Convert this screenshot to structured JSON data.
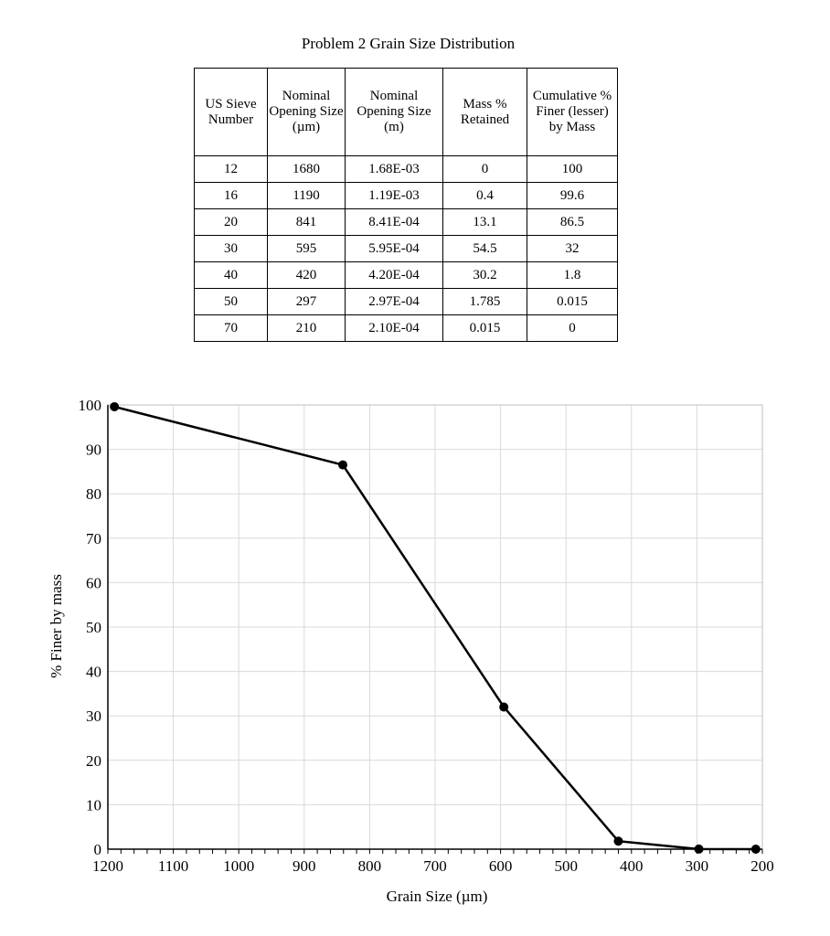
{
  "table": {
    "title": "Problem 2 Grain Size Distribution",
    "headers": [
      "US Sieve Number",
      "Nominal Opening Size (µm)",
      "Nominal Opening Size (m)",
      "Mass % Retained",
      "Cumulative % Finer (lesser) by Mass"
    ],
    "rows": [
      [
        "12",
        "1680",
        "1.68E-03",
        "0",
        "100"
      ],
      [
        "16",
        "1190",
        "1.19E-03",
        "0.4",
        "99.6"
      ],
      [
        "20",
        "841",
        "8.41E-04",
        "13.1",
        "86.5"
      ],
      [
        "30",
        "595",
        "5.95E-04",
        "54.5",
        "32"
      ],
      [
        "40",
        "420",
        "4.20E-04",
        "30.2",
        "1.8"
      ],
      [
        "50",
        "297",
        "2.97E-04",
        "1.785",
        "0.015"
      ],
      [
        "70",
        "210",
        "2.10E-04",
        "0.015",
        "0"
      ]
    ]
  },
  "chart_data": {
    "type": "line",
    "title": "",
    "xlabel": "Grain Size (µm)",
    "ylabel": "% Finer by mass",
    "xlim": [
      1200,
      200
    ],
    "x_reversed": true,
    "ylim": [
      0,
      100
    ],
    "x_ticks": [
      1200,
      1100,
      1000,
      900,
      800,
      700,
      600,
      500,
      400,
      300,
      200
    ],
    "y_ticks": [
      0,
      10,
      20,
      30,
      40,
      50,
      60,
      70,
      80,
      90,
      100
    ],
    "grid": true,
    "legend": "none",
    "series": [
      {
        "x": [
          1190,
          841,
          595,
          420,
          297,
          210
        ],
        "y": [
          99.6,
          86.5,
          32,
          1.8,
          0.015,
          0
        ],
        "color": "#000000",
        "marker": "circle"
      }
    ]
  }
}
